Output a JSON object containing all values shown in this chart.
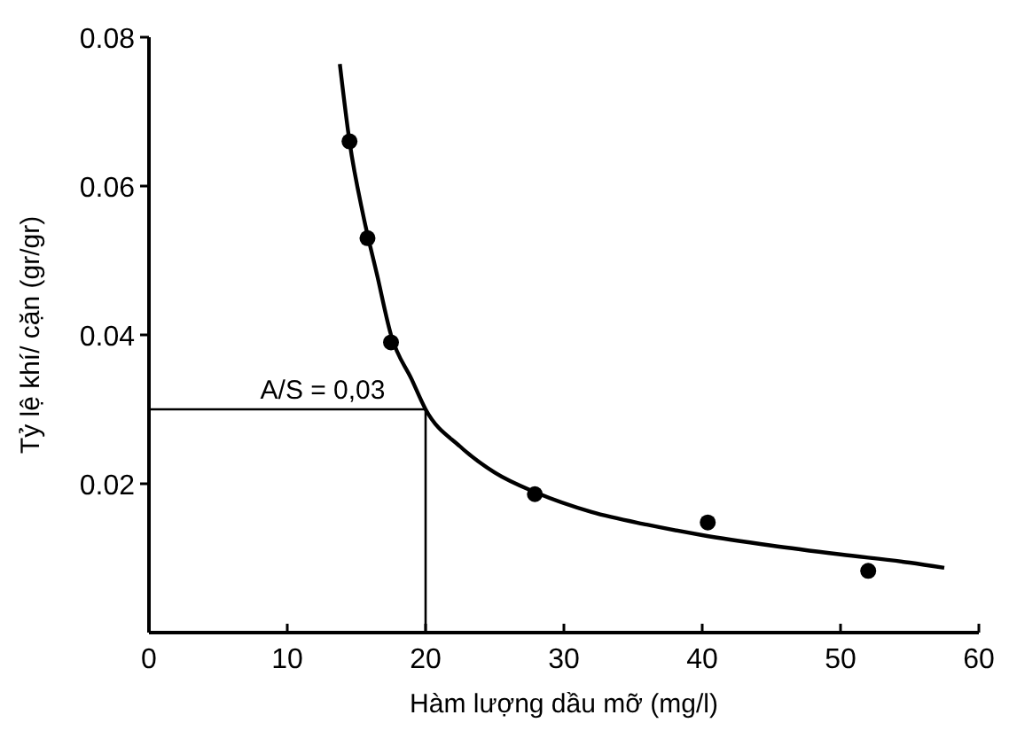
{
  "chart_data": {
    "type": "scatter",
    "xlabel": "Hàm lượng dầu mỡ (mg/l)",
    "ylabel": "Tỷ lệ khí/ cặn (gr/gr)",
    "xlim": [
      0,
      60
    ],
    "xticks": [
      0,
      10,
      20,
      30,
      40,
      50,
      60
    ],
    "ylim": [
      0,
      0.08
    ],
    "yticks": [
      0.02,
      0.04,
      0.06,
      0.08
    ],
    "grid": false,
    "series": [
      {
        "color": "#000000",
        "marker": "circle",
        "x": [
          14.5,
          15.8,
          17.5,
          27.9,
          40.4,
          52.0
        ],
        "values": [
          0.066,
          0.053,
          0.039,
          0.0186,
          0.0148,
          0.0083
        ]
      },
      {
        "type": "line",
        "color": "#000000",
        "line_style": "solid",
        "x": [
          13.8,
          14.5,
          15.5,
          16.5,
          17.5,
          19,
          20,
          22.5,
          25,
          28,
          32,
          36,
          40,
          45,
          50,
          55,
          57.5
        ],
        "values": [
          0.0764,
          0.066,
          0.056,
          0.048,
          0.04,
          0.034,
          0.03,
          0.025,
          0.0215,
          0.0188,
          0.0162,
          0.0145,
          0.0131,
          0.0117,
          0.0105,
          0.0094,
          0.0087
        ]
      }
    ],
    "ref_lines": [
      {
        "axis": "y",
        "value": 0.03,
        "label": "A/S = 0,03",
        "color": "#000000"
      },
      {
        "axis": "x",
        "value": 20,
        "color": "#000000"
      }
    ]
  }
}
